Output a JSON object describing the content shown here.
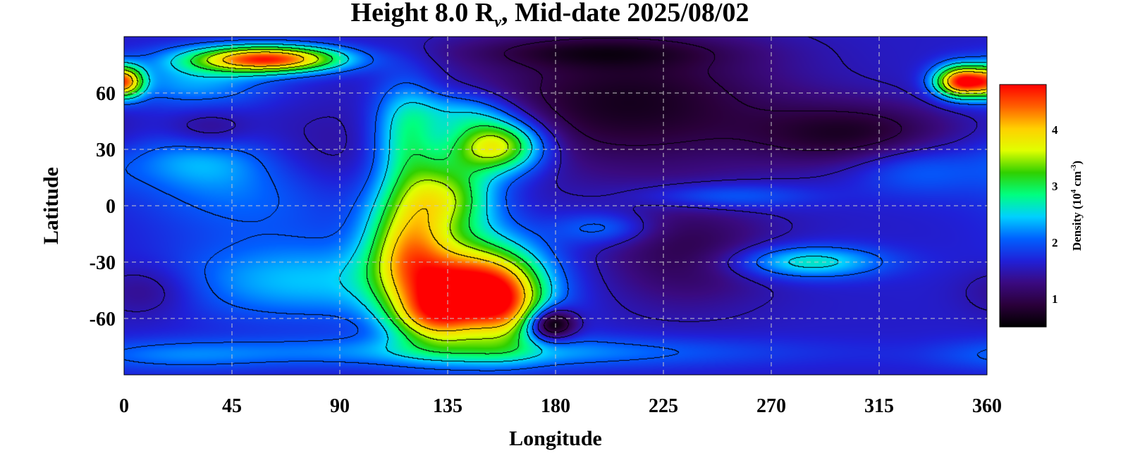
{
  "chart_data": {
    "type": "heatmap",
    "title": {
      "prefix": "Height 8.0 R",
      "subscript": "v",
      "suffix": ", Mid-date 2025/08/02"
    },
    "xlabel": "Longitude",
    "ylabel": "Latitude",
    "xlim": [
      0,
      360
    ],
    "ylim": [
      -90,
      90
    ],
    "x_ticks": [
      0,
      45,
      90,
      135,
      180,
      225,
      270,
      315,
      360
    ],
    "y_ticks": [
      60,
      30,
      0,
      -30,
      -60
    ],
    "grid": true,
    "contours": true,
    "colorbar": {
      "label_prefix": "Density (10",
      "label_exp1": "4",
      "label_mid": " cm",
      "label_exp2": "-3",
      "label_suffix": ")",
      "range": [
        0.5,
        4.8
      ],
      "ticks": [
        1,
        2,
        3,
        4
      ],
      "colormap": [
        "#000000",
        "#2a003a",
        "#3a0a80",
        "#2020d8",
        "#0060ff",
        "#00d0ff",
        "#00ff80",
        "#30d000",
        "#e0ff00",
        "#ffd000",
        "#ff6000",
        "#ff0000"
      ]
    },
    "background_density": 1.6,
    "features": [
      {
        "lon": 60,
        "lat": 78,
        "sx": 22,
        "sy": 5,
        "amp": 3.0
      },
      {
        "lon": 30,
        "lat": 66,
        "sx": 22,
        "sy": 10,
        "amp": 0.7
      },
      {
        "lon": 2,
        "lat": 66,
        "sx": 5,
        "sy": 6,
        "amp": 1.4
      },
      {
        "lon": 350,
        "lat": 66,
        "sx": 8,
        "sy": 6,
        "amp": 3.2
      },
      {
        "lon": 155,
        "lat": 32,
        "sx": 14,
        "sy": 10,
        "amp": 2.3
      },
      {
        "lon": 118,
        "lat": 38,
        "sx": 10,
        "sy": 20,
        "amp": 1.2
      },
      {
        "lon": 142,
        "lat": 50,
        "sx": 14,
        "sy": 8,
        "amp": 0.8
      },
      {
        "lon": 135,
        "lat": 5,
        "sx": 14,
        "sy": 14,
        "amp": 1.6
      },
      {
        "lon": 118,
        "lat": -20,
        "sx": 12,
        "sy": 20,
        "amp": 1.8
      },
      {
        "lon": 145,
        "lat": -45,
        "sx": 20,
        "sy": 18,
        "amp": 3.2
      },
      {
        "lon": 128,
        "lat": -60,
        "sx": 12,
        "sy": 10,
        "amp": 1.2
      },
      {
        "lon": 160,
        "lat": -55,
        "sx": 10,
        "sy": 14,
        "amp": 1.0
      },
      {
        "lon": 178,
        "lat": -63,
        "sx": 7,
        "sy": 6,
        "amp": -1.6
      },
      {
        "lon": 60,
        "lat": 10,
        "sx": 35,
        "sy": 18,
        "amp": 0.7
      },
      {
        "lon": 30,
        "lat": 25,
        "sx": 20,
        "sy": 10,
        "amp": 0.5
      },
      {
        "lon": 75,
        "lat": -40,
        "sx": 40,
        "sy": 15,
        "amp": 0.8
      },
      {
        "lon": 150,
        "lat": -78,
        "sx": 80,
        "sy": 6,
        "amp": 0.7
      },
      {
        "lon": 20,
        "lat": -80,
        "sx": 30,
        "sy": 6,
        "amp": 0.4
      },
      {
        "lon": 285,
        "lat": -30,
        "sx": 22,
        "sy": 6,
        "amp": 1.1
      },
      {
        "lon": 250,
        "lat": 5,
        "sx": 25,
        "sy": 5,
        "amp": 0.6
      },
      {
        "lon": 200,
        "lat": -12,
        "sx": 14,
        "sy": 6,
        "amp": 0.6
      },
      {
        "lon": 330,
        "lat": 20,
        "sx": 20,
        "sy": 10,
        "amp": 0.5
      },
      {
        "lon": 210,
        "lat": 55,
        "sx": 45,
        "sy": 25,
        "amp": -0.9
      },
      {
        "lon": 305,
        "lat": 38,
        "sx": 30,
        "sy": 12,
        "amp": -0.8
      },
      {
        "lon": 80,
        "lat": 20,
        "sx": 25,
        "sy": 18,
        "amp": -0.5
      },
      {
        "lon": 35,
        "lat": 40,
        "sx": 12,
        "sy": 8,
        "amp": -0.4
      },
      {
        "lon": 235,
        "lat": -25,
        "sx": 25,
        "sy": 20,
        "amp": -0.6
      },
      {
        "lon": 195,
        "lat": 82,
        "sx": 40,
        "sy": 6,
        "amp": -0.5
      },
      {
        "lon": 10,
        "lat": -45,
        "sx": 15,
        "sy": 10,
        "amp": -0.4
      }
    ],
    "contour_levels": [
      1.0,
      1.5,
      2.0,
      2.5,
      3.0,
      3.5,
      4.0
    ]
  }
}
